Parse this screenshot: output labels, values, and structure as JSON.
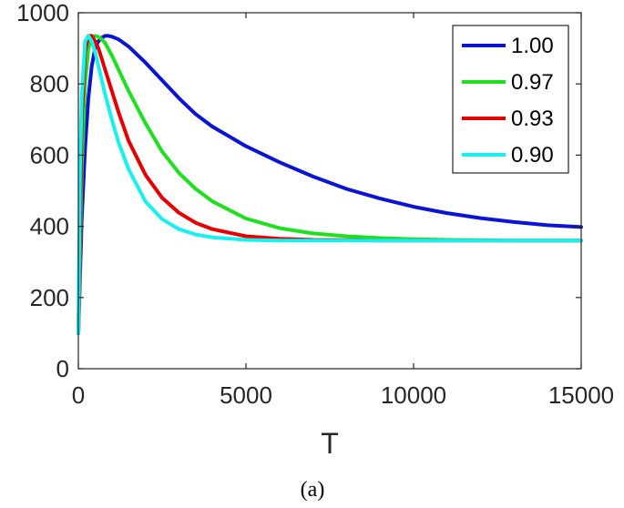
{
  "chart_data": {
    "type": "line",
    "xlabel": "T",
    "ylabel": "",
    "xlim": [
      0,
      15000
    ],
    "ylim": [
      0,
      1000
    ],
    "xticks": [
      "0",
      "5000",
      "10000",
      "15000"
    ],
    "yticks": [
      "0",
      "200",
      "400",
      "600",
      "800",
      "1000"
    ],
    "legend_position": "top-right",
    "caption": "(a)",
    "series": [
      {
        "name": "1.00",
        "color": "#0a14d2",
        "x": [
          0,
          100,
          200,
          300,
          400,
          500,
          600,
          700,
          800,
          900,
          1000,
          1200,
          1500,
          2000,
          2500,
          3000,
          3500,
          4000,
          5000,
          6000,
          7000,
          8000,
          9000,
          10000,
          11000,
          12000,
          13000,
          14000,
          15000
        ],
        "y": [
          100,
          420,
          620,
          760,
          850,
          900,
          920,
          930,
          935,
          935,
          933,
          925,
          905,
          860,
          810,
          760,
          715,
          680,
          625,
          580,
          540,
          505,
          478,
          455,
          437,
          423,
          412,
          403,
          398
        ]
      },
      {
        "name": "0.97",
        "color": "#1ee01e",
        "x": [
          0,
          100,
          200,
          300,
          400,
          500,
          600,
          700,
          800,
          1000,
          1200,
          1500,
          2000,
          2500,
          3000,
          3500,
          4000,
          5000,
          6000,
          7000,
          8000,
          9000,
          10000,
          11000,
          12000,
          13000,
          14000,
          15000
        ],
        "y": [
          100,
          560,
          800,
          900,
          930,
          935,
          932,
          925,
          915,
          880,
          840,
          780,
          690,
          610,
          550,
          505,
          470,
          422,
          395,
          380,
          372,
          367,
          364,
          362,
          361,
          360,
          360,
          360
        ]
      },
      {
        "name": "0.93",
        "color": "#e60000",
        "x": [
          0,
          100,
          200,
          300,
          400,
          500,
          600,
          700,
          800,
          1000,
          1200,
          1500,
          2000,
          2500,
          3000,
          3500,
          4000,
          5000,
          6000,
          7000,
          8000,
          9000,
          10000,
          12000,
          15000
        ],
        "y": [
          100,
          700,
          890,
          935,
          935,
          920,
          900,
          870,
          840,
          780,
          720,
          640,
          545,
          480,
          438,
          410,
          392,
          372,
          365,
          362,
          361,
          360,
          360,
          360,
          360
        ]
      },
      {
        "name": "0.90",
        "color": "#19f0f0",
        "x": [
          0,
          50,
          100,
          200,
          300,
          400,
          500,
          600,
          700,
          800,
          1000,
          1200,
          1500,
          2000,
          2500,
          3000,
          3500,
          4000,
          5000,
          6000,
          7000,
          8000,
          10000,
          12000,
          15000
        ],
        "y": [
          100,
          550,
          760,
          920,
          935,
          920,
          890,
          850,
          810,
          770,
          700,
          635,
          560,
          470,
          420,
          392,
          377,
          369,
          362,
          360,
          360,
          360,
          360,
          360,
          360
        ]
      }
    ]
  }
}
